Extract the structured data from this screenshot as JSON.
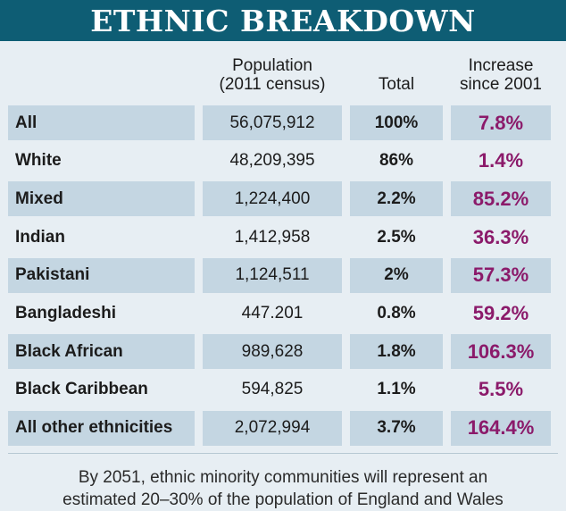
{
  "title": "ETHNIC BREAKDOWN",
  "columns": [
    "",
    "Population (2011 census)",
    "Total",
    "Increase since 2001"
  ],
  "header": {
    "population_line1": "Population",
    "population_line2": "(2011 census)",
    "total": "Total",
    "increase_line1": "Increase",
    "increase_line2": "since 2001"
  },
  "rows": [
    {
      "group": "All",
      "population": "56,075,912",
      "total": "100%",
      "increase": "7.8%"
    },
    {
      "group": "White",
      "population": "48,209,395",
      "total": "86%",
      "increase": "1.4%"
    },
    {
      "group": "Mixed",
      "population": "1,224,400",
      "total": "2.2%",
      "increase": "85.2%"
    },
    {
      "group": "Indian",
      "population": "1,412,958",
      "total": "2.5%",
      "increase": "36.3%"
    },
    {
      "group": "Pakistani",
      "population": "1,124,511",
      "total": "2%",
      "increase": "57.3%"
    },
    {
      "group": "Bangladeshi",
      "population": "447.201",
      "total": "0.8%",
      "increase": "59.2%"
    },
    {
      "group": "Black African",
      "population": "989,628",
      "total": "1.8%",
      "increase": "106.3%"
    },
    {
      "group": "Black Caribbean",
      "population": "594,825",
      "total": "1.1%",
      "increase": "5.5%"
    },
    {
      "group": "All other ethnicities",
      "population": "2,072,994",
      "total": "3.7%",
      "increase": "164.4%"
    }
  ],
  "footnote_line1": "By 2051, ethnic minority communities will represent an",
  "footnote_line2": "estimated 20–30% of the population of England and Wales",
  "colors": {
    "title_bar": "#0e5d74",
    "band": "#c4d6e2",
    "background": "#e7eef3",
    "increase_text": "#8b1a6a"
  },
  "chart_data": {
    "type": "table",
    "title": "ETHNIC BREAKDOWN",
    "columns": [
      "Population (2011 census)",
      "Total",
      "Increase since 2001"
    ],
    "categories": [
      "All",
      "White",
      "Mixed",
      "Indian",
      "Pakistani",
      "Bangladeshi",
      "Black African",
      "Black Caribbean",
      "All other ethnicities"
    ],
    "series": [
      {
        "name": "Population (2011 census)",
        "values": [
          56075912,
          48209395,
          1224400,
          1412958,
          1124511,
          447201,
          989628,
          594825,
          2072994
        ]
      },
      {
        "name": "Total",
        "values": [
          100,
          86,
          2.2,
          2.5,
          2,
          0.8,
          1.8,
          1.1,
          3.7
        ]
      },
      {
        "name": "Increase since 2001",
        "values": [
          7.8,
          1.4,
          85.2,
          36.3,
          57.3,
          59.2,
          106.3,
          5.5,
          164.4
        ]
      }
    ]
  }
}
